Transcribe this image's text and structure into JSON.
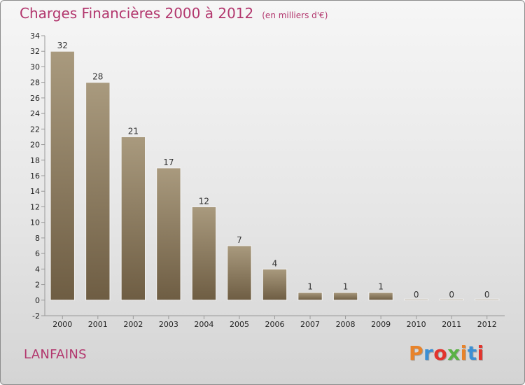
{
  "header": {
    "title": "Charges Financières 2000 à 2012",
    "unit": "(en milliers d'€)"
  },
  "commune": "LANFAINS",
  "logo": {
    "text": "Proxiti",
    "colors": [
      "#e8832a",
      "#3b8fd4",
      "#e2342d",
      "#5ab245",
      "#e8832a",
      "#3b8fd4",
      "#e2342d"
    ]
  },
  "colors": {
    "title": "#b2366d",
    "bar_top": "#a99a7e",
    "bar_bottom": "#6e5d43",
    "axis": "#999999",
    "tick_text": "#222222"
  },
  "chart_data": {
    "type": "bar",
    "categories": [
      "2000",
      "2001",
      "2002",
      "2003",
      "2004",
      "2005",
      "2006",
      "2007",
      "2008",
      "2009",
      "2010",
      "2011",
      "2012"
    ],
    "values": [
      32,
      28,
      21,
      17,
      12,
      7,
      4,
      1,
      1,
      1,
      0,
      0,
      0
    ],
    "data_labels": [
      "32",
      "28",
      "21",
      "17",
      "12",
      "7",
      "4",
      "1",
      "1",
      "1",
      "0",
      "0",
      "0"
    ],
    "ylim": [
      -2,
      34
    ],
    "yticks": [
      -2,
      0,
      2,
      4,
      6,
      8,
      10,
      12,
      14,
      16,
      18,
      20,
      22,
      24,
      26,
      28,
      30,
      32,
      34
    ],
    "grid": false,
    "legend": "none"
  }
}
